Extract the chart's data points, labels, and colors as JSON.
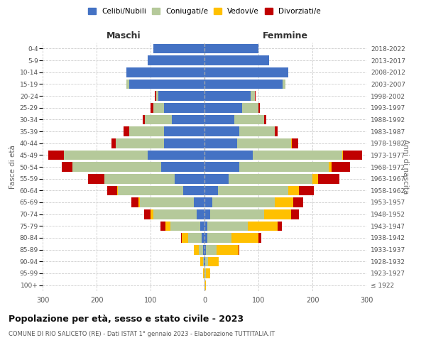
{
  "age_groups": [
    "100+",
    "95-99",
    "90-94",
    "85-89",
    "80-84",
    "75-79",
    "70-74",
    "65-69",
    "60-64",
    "55-59",
    "50-54",
    "45-49",
    "40-44",
    "35-39",
    "30-34",
    "25-29",
    "20-24",
    "15-19",
    "10-14",
    "5-9",
    "0-4"
  ],
  "birth_years": [
    "≤ 1922",
    "1923-1927",
    "1928-1932",
    "1933-1937",
    "1938-1942",
    "1943-1947",
    "1948-1952",
    "1953-1957",
    "1958-1962",
    "1963-1967",
    "1968-1972",
    "1973-1977",
    "1978-1982",
    "1983-1987",
    "1988-1992",
    "1993-1997",
    "1998-2002",
    "2003-2007",
    "2008-2012",
    "2013-2017",
    "2018-2022"
  ],
  "colors": {
    "celibi": "#4472c4",
    "coniugati": "#b5c99a",
    "vedovi": "#ffc000",
    "divorziati": "#c00000"
  },
  "maschi": {
    "celibi": [
      0,
      0,
      1,
      2,
      5,
      8,
      15,
      20,
      40,
      55,
      80,
      105,
      75,
      75,
      60,
      75,
      85,
      140,
      145,
      105,
      95
    ],
    "coniugati": [
      0,
      0,
      2,
      8,
      25,
      55,
      80,
      100,
      120,
      130,
      165,
      155,
      90,
      65,
      50,
      20,
      5,
      5,
      0,
      0,
      0
    ],
    "vedovi": [
      0,
      2,
      5,
      10,
      12,
      10,
      5,
      3,
      2,
      1,
      0,
      0,
      0,
      0,
      0,
      0,
      0,
      0,
      0,
      0,
      0
    ],
    "divorziati": [
      0,
      0,
      0,
      0,
      2,
      8,
      12,
      12,
      18,
      30,
      20,
      30,
      8,
      10,
      5,
      5,
      2,
      0,
      0,
      0,
      0
    ]
  },
  "femmine": {
    "celibi": [
      0,
      0,
      1,
      3,
      5,
      5,
      10,
      15,
      25,
      45,
      65,
      90,
      60,
      65,
      55,
      70,
      85,
      145,
      155,
      120,
      100
    ],
    "coniugati": [
      0,
      2,
      5,
      20,
      45,
      75,
      100,
      115,
      130,
      155,
      165,
      165,
      100,
      65,
      55,
      30,
      8,
      5,
      0,
      0,
      0
    ],
    "vedovi": [
      2,
      8,
      20,
      40,
      50,
      55,
      50,
      35,
      20,
      10,
      5,
      2,
      2,
      0,
      0,
      0,
      0,
      0,
      0,
      0,
      0
    ],
    "divorziati": [
      0,
      0,
      0,
      2,
      5,
      8,
      15,
      18,
      28,
      40,
      35,
      35,
      12,
      5,
      5,
      3,
      2,
      0,
      0,
      0,
      0
    ]
  },
  "title": "Popolazione per età, sesso e stato civile - 2023",
  "subtitle": "COMUNE DI RIO SALICETO (RE) - Dati ISTAT 1° gennaio 2023 - Elaborazione TUTTITALIA.IT",
  "ylabel_left": "Fasce di età",
  "ylabel_right": "Anni di nascita",
  "xlabel_left": "Maschi",
  "xlabel_right": "Femmine",
  "xlim": 300,
  "legend_labels": [
    "Celibi/Nubili",
    "Coniugati/e",
    "Vedovi/e",
    "Divorziati/e"
  ],
  "background_color": "#ffffff",
  "grid_color": "#cccccc"
}
